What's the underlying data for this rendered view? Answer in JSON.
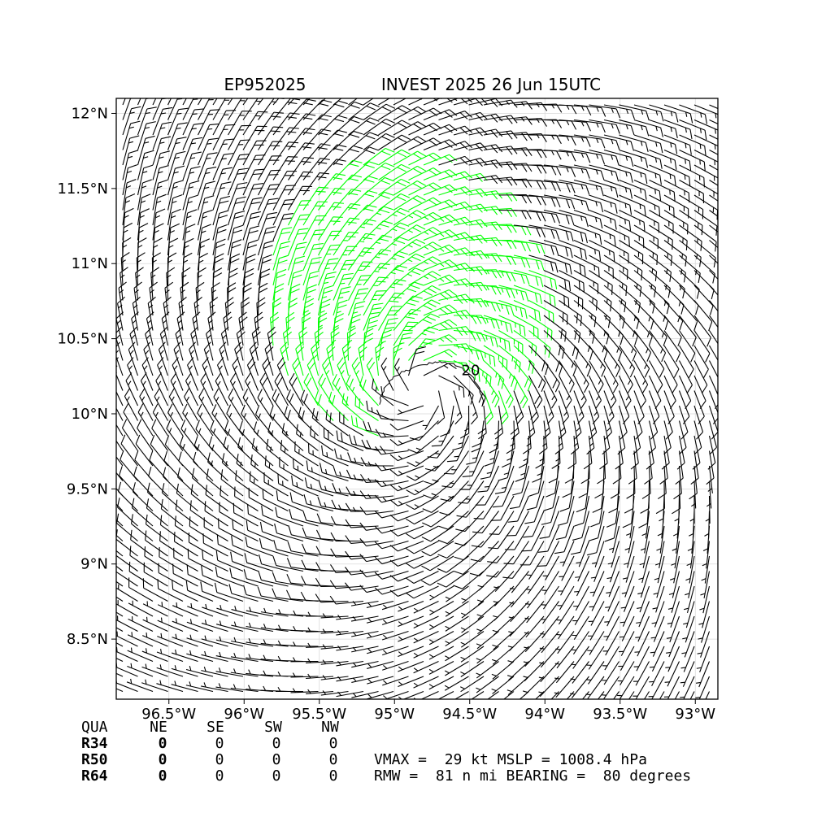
{
  "title": {
    "storm_id": "EP952025",
    "storm_desc": "INVEST 2025 26 Jun 15UTC"
  },
  "chart_data": {
    "type": "wind-barb",
    "x_ticks": [
      "96.5°W",
      "96°W",
      "95.5°W",
      "95°W",
      "94.5°W",
      "94°W",
      "93.5°W",
      "93°W"
    ],
    "x_tick_values": [
      -96.5,
      -96.0,
      -95.5,
      -95.0,
      -94.5,
      -94.0,
      -93.5,
      -93.0
    ],
    "y_ticks": [
      "12°N",
      "11.5°N",
      "11°N",
      "10.5°N",
      "10°N",
      "9.5°N",
      "9°N",
      "8.5°N"
    ],
    "y_tick_values": [
      12.0,
      11.5,
      11.0,
      10.5,
      10.0,
      9.5,
      9.0,
      8.5
    ],
    "xlim": [
      -96.85,
      -92.85
    ],
    "ylim": [
      8.1,
      12.1
    ],
    "grid": true,
    "center": {
      "lon": -94.8,
      "lat": 10.17
    },
    "vmax_kt": 29,
    "barb_colors": {
      "below_20kt": "#000000",
      "at_or_above_20kt": "#00ff00"
    },
    "contour_label": "20"
  },
  "radii_table": {
    "header": [
      "QUA",
      "NE",
      "SE",
      "SW",
      "NW"
    ],
    "rows": [
      {
        "label": "R34",
        "values": [
          "0",
          "0",
          "0",
          "0"
        ]
      },
      {
        "label": "R50",
        "values": [
          "0",
          "0",
          "0",
          "0"
        ]
      },
      {
        "label": "R64",
        "values": [
          "0",
          "0",
          "0",
          "0"
        ]
      }
    ]
  },
  "info": {
    "line1": "VMAX =  29 kt MSLP = 1008.4 hPa",
    "line2": "RMW =  81 n mi BEARING =  80 degrees"
  }
}
